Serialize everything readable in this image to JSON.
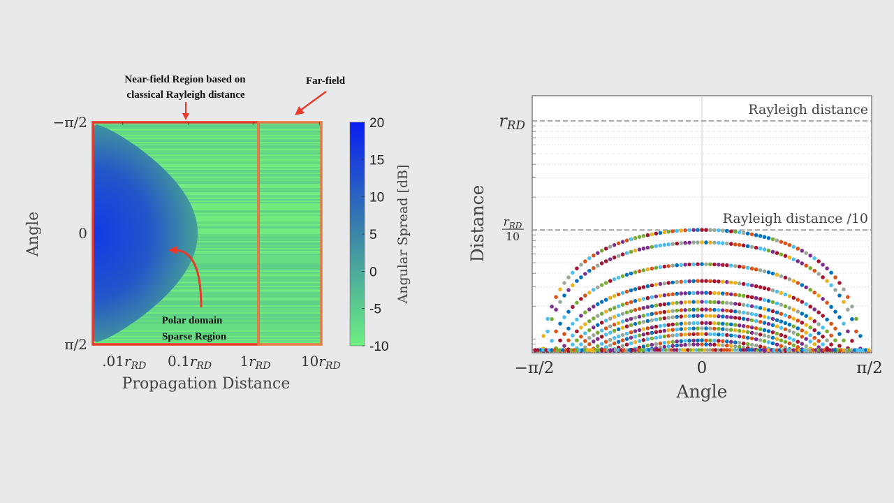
{
  "chart_data": [
    {
      "type": "heatmap",
      "title": "",
      "xlabel": "Propagation Distance",
      "ylabel": "Angle",
      "x_scale": "log",
      "xlim": [
        0.0035,
        10.7
      ],
      "x_unit": "r_RD",
      "x_ticks": [
        {
          "value": 0.01,
          "prefix": ".01",
          "var": "r",
          "sub": "RD"
        },
        {
          "value": 0.1,
          "prefix": "0.1",
          "var": "r",
          "sub": "RD"
        },
        {
          "value": 1,
          "prefix": "1",
          "var": "r",
          "sub": "RD"
        },
        {
          "value": 10,
          "prefix": "10",
          "var": "r",
          "sub": "RD"
        }
      ],
      "y_ticks": [
        {
          "value": -1.5708,
          "label": "−π/2"
        },
        {
          "value": 0,
          "label": "0"
        },
        {
          "value": 1.5708,
          "label": "π/2"
        }
      ],
      "ylim": [
        -1.5708,
        1.5708
      ],
      "colorbar": {
        "label": "Angular Spread [dB]",
        "range": [
          -10,
          20
        ],
        "ticks": [
          "20",
          "15",
          "10",
          "5",
          "0",
          "-5",
          "-10"
        ],
        "color_high": "#0a1ef2",
        "color_mid": "#3a86a8",
        "color_low": "#6ef082"
      },
      "near_field_boundary_peak": 0.12,
      "far_field_start": 1.1,
      "annotations": {
        "near_field_line1": "Near-field Region based on",
        "near_field_line2": "classical Rayleigh distance",
        "far_field": "Far-field",
        "polar_line1": "Polar domain",
        "polar_line2": "Sparse Region"
      },
      "colors": {
        "near_box": "#e8392b",
        "far_box": "#e87a45",
        "arrow": "#e8392b"
      }
    },
    {
      "type": "scatter",
      "xlabel": "Angle",
      "ylabel": "Distance",
      "y_scale": "log",
      "xlim": [
        -1.5708,
        1.5708
      ],
      "ylim": [
        0.0078,
        1.7
      ],
      "x_ticks": [
        {
          "value": -1.5708,
          "label": "−π/2"
        },
        {
          "value": 0,
          "label": "0"
        },
        {
          "value": 1.5708,
          "label": "π/2"
        }
      ],
      "y_ticks": [
        {
          "value": 1,
          "var": "r",
          "sub": "RD"
        },
        {
          "value": 0.1,
          "var": "r",
          "sub": "RD",
          "den": "10"
        }
      ],
      "reference_lines": [
        {
          "value": 1,
          "label": "Rayleigh distance"
        },
        {
          "value": 0.1,
          "label": "Rayleigh distance /10"
        }
      ],
      "ring_peaks": [
        0.1,
        0.0767,
        0.0485,
        0.034,
        0.0265,
        0.0219,
        0.0186,
        0.0163,
        0.014,
        0.0125,
        0.0111,
        0.0097,
        0.0089
      ],
      "ring_shape": "peak*(1-(2*angle/pi)^2)",
      "points_per_ring": 80,
      "palette": [
        "#0072BD",
        "#D95319",
        "#EDB120",
        "#7E2F8E",
        "#77AC30",
        "#4DBEEE",
        "#A2142F",
        "#9aa89a"
      ]
    }
  ]
}
